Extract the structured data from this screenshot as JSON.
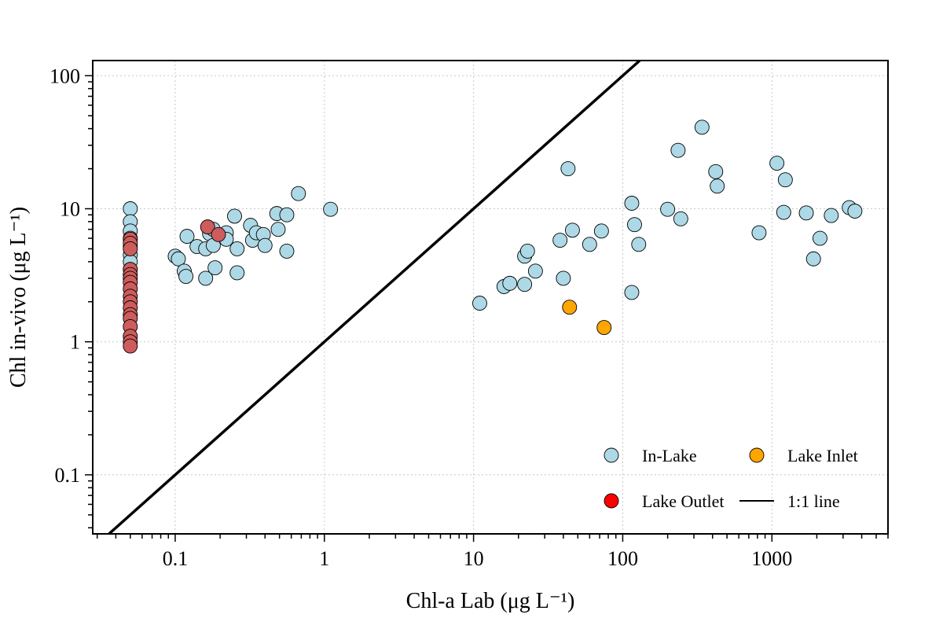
{
  "chart_data": {
    "type": "scatter",
    "xlabel": "Chl-a Lab (μg L⁻¹)",
    "ylabel": "Chl in-vivo (μg L⁻¹)",
    "xscale": "log",
    "yscale": "log",
    "xlim": [
      0.028,
      6000
    ],
    "ylim": [
      0.036,
      130
    ],
    "xticks": [
      {
        "value": 0.1,
        "label": "0.1"
      },
      {
        "value": 1,
        "label": "1"
      },
      {
        "value": 10,
        "label": "10"
      },
      {
        "value": 100,
        "label": "100"
      },
      {
        "value": 1000,
        "label": "1000"
      }
    ],
    "yticks": [
      {
        "value": 0.1,
        "label": "0.1"
      },
      {
        "value": 1,
        "label": "1"
      },
      {
        "value": 10,
        "label": "10"
      },
      {
        "value": 100,
        "label": "100"
      }
    ],
    "grid": true,
    "legend_position": "bottom-right",
    "reference_line": {
      "name": "1:1 line",
      "slope": 1,
      "color": "#000000"
    },
    "legend": [
      {
        "label": "In-Lake",
        "kind": "marker",
        "color": "#ADD8E6"
      },
      {
        "label": "Lake Inlet",
        "kind": "marker",
        "color": "#FFA500"
      },
      {
        "label": "Lake Outlet",
        "kind": "marker",
        "color": "#FF0000"
      },
      {
        "label": "1:1 line",
        "kind": "line",
        "color": "#000000"
      }
    ],
    "series": [
      {
        "name": "In-Lake",
        "color": "#ADD8E6",
        "points": [
          [
            0.05,
            10.0
          ],
          [
            0.05,
            8.0
          ],
          [
            0.05,
            6.8
          ],
          [
            0.05,
            6.0
          ],
          [
            0.05,
            5.2
          ],
          [
            0.05,
            4.5
          ],
          [
            0.05,
            4.0
          ],
          [
            0.05,
            3.5
          ],
          [
            0.1,
            4.4
          ],
          [
            0.105,
            4.2
          ],
          [
            0.12,
            6.2
          ],
          [
            0.115,
            3.4
          ],
          [
            0.118,
            3.1
          ],
          [
            0.14,
            5.2
          ],
          [
            0.16,
            3.0
          ],
          [
            0.16,
            5.0
          ],
          [
            0.17,
            6.5
          ],
          [
            0.18,
            7.0
          ],
          [
            0.18,
            5.3
          ],
          [
            0.185,
            3.6
          ],
          [
            0.22,
            6.6
          ],
          [
            0.22,
            5.9
          ],
          [
            0.25,
            8.8
          ],
          [
            0.26,
            5.0
          ],
          [
            0.26,
            3.3
          ],
          [
            0.32,
            7.5
          ],
          [
            0.33,
            5.8
          ],
          [
            0.35,
            6.6
          ],
          [
            0.39,
            6.4
          ],
          [
            0.4,
            5.3
          ],
          [
            0.48,
            9.2
          ],
          [
            0.49,
            7.0
          ],
          [
            0.56,
            9.0
          ],
          [
            0.56,
            4.8
          ],
          [
            0.67,
            13.0
          ],
          [
            1.1,
            9.9
          ],
          [
            11.0,
            1.95
          ],
          [
            16.0,
            2.6
          ],
          [
            17.5,
            2.75
          ],
          [
            22.0,
            2.7
          ],
          [
            22.0,
            4.4
          ],
          [
            23.0,
            4.8
          ],
          [
            26.0,
            3.4
          ],
          [
            38.0,
            5.8
          ],
          [
            40.0,
            3.0
          ],
          [
            43.0,
            20.0
          ],
          [
            46.0,
            6.9
          ],
          [
            60.0,
            5.4
          ],
          [
            72.0,
            6.8
          ],
          [
            115.0,
            11.0
          ],
          [
            115.0,
            2.35
          ],
          [
            120.0,
            7.6
          ],
          [
            128.0,
            5.4
          ],
          [
            200.0,
            9.9
          ],
          [
            235.0,
            27.5
          ],
          [
            245.0,
            8.4
          ],
          [
            340.0,
            41.0
          ],
          [
            420.0,
            19.0
          ],
          [
            430.0,
            14.8
          ],
          [
            820.0,
            6.6
          ],
          [
            1080.0,
            22.0
          ],
          [
            1200.0,
            9.4
          ],
          [
            1230.0,
            16.5
          ],
          [
            1700.0,
            9.3
          ],
          [
            1900.0,
            4.2
          ],
          [
            2100.0,
            6.0
          ],
          [
            2500.0,
            8.9
          ],
          [
            3300.0,
            10.2
          ],
          [
            3600.0,
            9.6
          ]
        ]
      },
      {
        "name": "Lake Inlet",
        "color": "#FFA500",
        "points": [
          [
            44.0,
            1.82
          ],
          [
            75.0,
            1.28
          ]
        ]
      },
      {
        "name": "Lake Outlet",
        "color": "#CD5C5C",
        "points": [
          [
            0.05,
            5.9
          ],
          [
            0.05,
            5.5
          ],
          [
            0.05,
            5.0
          ],
          [
            0.05,
            3.5
          ],
          [
            0.05,
            3.2
          ],
          [
            0.05,
            3.0
          ],
          [
            0.05,
            2.8
          ],
          [
            0.05,
            2.5
          ],
          [
            0.05,
            2.2
          ],
          [
            0.05,
            2.0
          ],
          [
            0.05,
            1.8
          ],
          [
            0.05,
            1.6
          ],
          [
            0.05,
            1.5
          ],
          [
            0.05,
            1.3
          ],
          [
            0.05,
            1.1
          ],
          [
            0.05,
            1.0
          ],
          [
            0.05,
            0.93
          ],
          [
            0.165,
            7.3
          ],
          [
            0.195,
            6.4
          ]
        ]
      }
    ]
  }
}
